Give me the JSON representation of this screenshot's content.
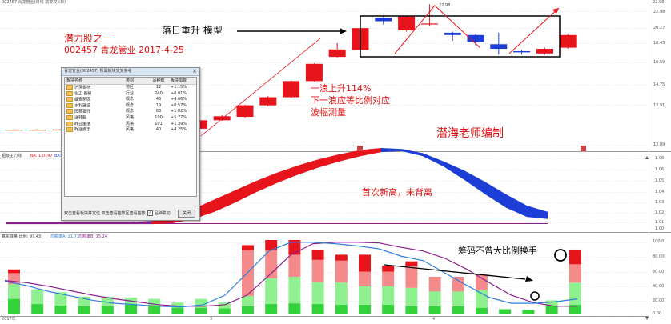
{
  "window": {
    "title": "002457 青龙管业(日线 前复权)(日)",
    "corner_label": "22.98"
  },
  "annotations": {
    "left_title": "潜力股之一",
    "stock_line": "002457 青龙管业 2017-4-25",
    "pattern": "落日重升 模型",
    "rise_line1": "一浪上升114%",
    "rise_line2": "下一浪应等比例对应",
    "rise_line3": "波幅测量",
    "signature": "潜海老师编制",
    "new_high": "首次新高，未背离",
    "chips": "筹码不曾大比例换手",
    "peak_label": "22.98"
  },
  "main_axis": {
    "labels": [
      "22.98",
      "20.27",
      "18.43",
      "16.59",
      "14.75",
      "12.91",
      "12.09"
    ]
  },
  "indicator1": {
    "name": "超级主力线",
    "param_a": "BA: 1.0147",
    "param_b": "BA: 1.0147",
    "axis_labels": [
      "1.08",
      "1.06",
      "1.05",
      "1.04",
      "1.03",
      "1.02",
      "1.01",
      "1.00"
    ]
  },
  "indicator2": {
    "name": "真实底量 比例: 97.43",
    "param_a": "均额率A: 21.71",
    "param_b": "均额率B: 15.24",
    "axis_labels": [
      "100.0",
      "80.00",
      "60.00",
      "40.00",
      "20.00",
      "0.00"
    ]
  },
  "x_axis": {
    "labels": [
      "2017年",
      "3",
      "4"
    ]
  },
  "dialog": {
    "title": "青龙管业(002457)  所属板块交叉参考",
    "close_glyph": "×",
    "columns": [
      "板块名称",
      "类别",
      "品种数",
      "板块指数"
    ],
    "rows": [
      [
        "沪深板块",
        "地区",
        "12",
        "+1.15%"
      ],
      [
        "化工-塑料",
        "行业",
        "240",
        "+0.81%"
      ],
      [
        "雄安新区",
        "概念",
        "43",
        "+4.66%"
      ],
      [
        "水利建设",
        "概念",
        "19",
        "+0.57%"
      ],
      [
        "民营银行",
        "概念",
        "83",
        "+1.02%"
      ],
      [
        "送转股",
        "风格",
        "100",
        "+5.77%"
      ],
      [
        "昨日振荡",
        "风格",
        "101",
        "+1.39%"
      ],
      [
        "昨涨换手",
        "风格",
        "40",
        "+4.25%"
      ]
    ],
    "footer_left": "双击查看板块并定位   双击查看指数区查看指数",
    "checkbox_label": "品种联动",
    "checkbox_mark": "✓",
    "close_button": "关闭"
  },
  "colors": {
    "up": "#e8141b",
    "down": "#1c3dd6",
    "line_purple": "#8b1f8b",
    "line_blue": "#2f7fd8",
    "bar_red": "#e8141b",
    "bar_pink": "#f58a8a",
    "bar_green": "#34d23b",
    "bar_lightgreen": "#8ef08e",
    "bar_grey": "#8c8c8c"
  },
  "candles": [
    {
      "o": 12.09,
      "c": 12.09,
      "h": 12.12,
      "l": 12.06
    },
    {
      "o": 12.09,
      "c": 12.09,
      "h": 12.14,
      "l": 12.05
    },
    {
      "o": 12.1,
      "c": 12.1,
      "h": 12.12,
      "l": 12.06
    },
    {
      "o": 12.09,
      "c": 12.11,
      "h": 12.13,
      "l": 12.07
    },
    {
      "o": 12.1,
      "c": 12.12,
      "h": 12.15,
      "l": 12.08
    },
    {
      "o": 12.11,
      "c": 12.13,
      "h": 12.15,
      "l": 12.08
    },
    {
      "o": 12.12,
      "c": 12.15,
      "h": 12.18,
      "l": 12.1
    },
    {
      "o": 12.14,
      "c": 12.17,
      "h": 12.2,
      "l": 12.12
    },
    {
      "o": 12.17,
      "c": 12.9,
      "h": 12.95,
      "l": 12.15
    },
    {
      "o": 12.9,
      "c": 13.25,
      "h": 13.35,
      "l": 12.85
    },
    {
      "o": 13.2,
      "c": 14.2,
      "h": 14.25,
      "l": 13.1
    },
    {
      "o": 14.2,
      "c": 14.9,
      "h": 15.0,
      "l": 14.1
    },
    {
      "o": 14.9,
      "c": 16.3,
      "h": 16.35,
      "l": 14.85
    },
    {
      "o": 16.3,
      "c": 17.8,
      "h": 17.85,
      "l": 16.25
    },
    {
      "o": 18.4,
      "c": 19.05,
      "h": 19.6,
      "l": 18.35
    },
    {
      "o": 19.0,
      "c": 20.9,
      "h": 20.95,
      "l": 18.95
    },
    {
      "o": 21.8,
      "c": 21.5,
      "h": 21.95,
      "l": 21.2
    },
    {
      "o": 20.7,
      "c": 21.9,
      "h": 22.0,
      "l": 20.6
    },
    {
      "o": 21.3,
      "c": 21.3,
      "h": 22.98,
      "l": 21.1
    },
    {
      "o": 20.5,
      "c": 20.3,
      "h": 20.6,
      "l": 19.8
    },
    {
      "o": 20.3,
      "c": 19.7,
      "h": 20.4,
      "l": 19.4
    },
    {
      "o": 19.5,
      "c": 19.1,
      "h": 20.5,
      "l": 18.6
    },
    {
      "o": 18.9,
      "c": 18.8,
      "h": 19.0,
      "l": 18.6
    },
    {
      "o": 18.7,
      "c": 19.1,
      "h": 19.2,
      "l": 18.6
    },
    {
      "o": 19.2,
      "c": 20.3,
      "h": 20.4,
      "l": 19.1
    }
  ],
  "band": {
    "upper": [
      1.005,
      1.005,
      1.005,
      1.005,
      1.005,
      1.005,
      1.005,
      1.006,
      1.01,
      1.018,
      1.027,
      1.036,
      1.045,
      1.053,
      1.06,
      1.066,
      1.071,
      1.075,
      1.077,
      1.076,
      1.072,
      1.064,
      1.055,
      1.044,
      1.032,
      1.021,
      1.015
    ],
    "lower": [
      1.003,
      1.003,
      1.003,
      1.003,
      1.003,
      1.003,
      1.003,
      1.003,
      1.004,
      1.008,
      1.015,
      1.024,
      1.034,
      1.043,
      1.051,
      1.058,
      1.064,
      1.069,
      1.073,
      1.074,
      1.069,
      1.059,
      1.046,
      1.032,
      1.019,
      1.01,
      1.008
    ]
  },
  "volume": [
    {
      "g": 20,
      "lg": 20,
      "p": 15,
      "r": 5
    },
    {
      "g": 13,
      "lg": 20,
      "p": 0,
      "r": 0
    },
    {
      "g": 11,
      "lg": 18,
      "p": 0,
      "r": 0
    },
    {
      "g": 10,
      "lg": 13,
      "p": 0,
      "r": 0
    },
    {
      "g": 10,
      "lg": 13,
      "p": 0,
      "r": 0
    },
    {
      "g": 12,
      "lg": 10,
      "p": 0,
      "r": 0
    },
    {
      "g": 10,
      "lg": 10,
      "p": 0,
      "r": 0
    },
    {
      "g": 8,
      "lg": 7,
      "p": 0,
      "r": 0
    },
    {
      "g": 8,
      "lg": 12,
      "p": 0,
      "r": 0
    },
    {
      "g": 7,
      "lg": 8,
      "p": 0,
      "r": 0
    },
    {
      "g": 10,
      "lg": 14,
      "p": 62,
      "r": 7
    },
    {
      "g": 13,
      "lg": 35,
      "p": 38,
      "r": 14
    },
    {
      "g": 14,
      "lg": 36,
      "p": 30,
      "r": 20
    },
    {
      "g": 13,
      "lg": 30,
      "p": 30,
      "r": 14
    },
    {
      "g": 12,
      "lg": 30,
      "p": 30,
      "r": 8
    },
    {
      "g": 12,
      "lg": 25,
      "p": 20,
      "r": 23
    },
    {
      "g": 12,
      "lg": 25,
      "p": 20,
      "r": 8
    },
    {
      "g": 10,
      "lg": 25,
      "p": 30,
      "r": 6
    },
    {
      "g": 10,
      "lg": 20,
      "p": 20,
      "r": 0
    },
    {
      "g": 10,
      "lg": 20,
      "p": 20,
      "r": 0
    },
    {
      "g": 8,
      "lg": 24,
      "p": 21,
      "r": 0
    },
    {
      "g": 6,
      "lg": 0,
      "p": 0,
      "r": 0
    },
    {
      "g": 5,
      "lg": 0,
      "p": 0,
      "r": 0
    },
    {
      "g": 10,
      "lg": 8,
      "p": 0,
      "r": 0
    },
    {
      "g": 12,
      "lg": 30,
      "p": 25,
      "r": 20
    }
  ],
  "ma_purple": [
    45,
    42,
    37,
    31,
    25,
    20,
    16,
    12,
    10,
    10,
    12,
    25,
    52,
    80,
    95,
    97,
    97,
    96,
    90,
    85,
    75,
    60,
    42,
    25,
    15,
    10,
    10
  ],
  "ma_blue": [
    44,
    38,
    30,
    24,
    18,
    14,
    12,
    10,
    9,
    12,
    25,
    55,
    85,
    97,
    97,
    95,
    92,
    88,
    78,
    72,
    55,
    38,
    22,
    14,
    14,
    16,
    20
  ]
}
